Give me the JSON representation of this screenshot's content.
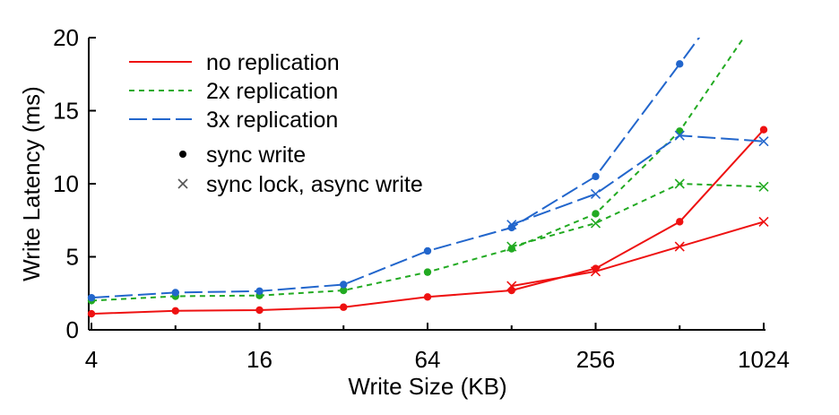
{
  "chart_data": {
    "type": "line",
    "title": "",
    "xlabel": "Write Size (KB)",
    "ylabel": "Write Latency (ms)",
    "x_scale": "log2",
    "x": [
      4,
      8,
      16,
      32,
      64,
      128,
      256,
      512,
      1024
    ],
    "xticks": [
      "4",
      "16",
      "64",
      "256",
      "1024"
    ],
    "xtick_values": [
      4,
      16,
      64,
      256,
      1024
    ],
    "ylim": [
      0,
      20
    ],
    "yticks": [
      0,
      5,
      10,
      15,
      20
    ],
    "grid": false,
    "legend_position": "top-left",
    "series": [
      {
        "name": "no replication",
        "mode": "sync write",
        "color": "#ee1111",
        "dash": "solid",
        "marker": "dot",
        "values": [
          1.1,
          1.3,
          1.35,
          1.55,
          2.25,
          2.7,
          4.2,
          7.4,
          13.7
        ]
      },
      {
        "name": "no replication",
        "mode": "sync lock, async write",
        "color": "#ee1111",
        "dash": "solid",
        "marker": "x",
        "values": [
          null,
          null,
          null,
          null,
          null,
          3.0,
          4.0,
          5.7,
          7.4
        ]
      },
      {
        "name": "2x replication",
        "mode": "sync write",
        "color": "#22aa22",
        "dash": "short",
        "marker": "dot",
        "values": [
          2.0,
          2.3,
          2.35,
          2.7,
          3.95,
          5.55,
          7.95,
          13.6,
          22.0
        ]
      },
      {
        "name": "2x replication",
        "mode": "sync lock, async write",
        "color": "#22aa22",
        "dash": "short",
        "marker": "x",
        "values": [
          null,
          null,
          null,
          null,
          null,
          5.7,
          7.3,
          10.0,
          9.8
        ]
      },
      {
        "name": "3x replication",
        "mode": "sync write",
        "color": "#2266cc",
        "dash": "long",
        "marker": "dot",
        "values": [
          2.2,
          2.55,
          2.65,
          3.1,
          5.4,
          7.0,
          10.5,
          18.2,
          26.0
        ]
      },
      {
        "name": "3x replication",
        "mode": "sync lock, async write",
        "color": "#2266cc",
        "dash": "long",
        "marker": "x",
        "values": [
          null,
          null,
          null,
          null,
          null,
          7.2,
          9.3,
          13.3,
          12.9
        ]
      }
    ],
    "legend": {
      "lines": [
        {
          "label": "no replication",
          "color": "#ee1111",
          "dash": "solid"
        },
        {
          "label": "2x replication",
          "color": "#22aa22",
          "dash": "short"
        },
        {
          "label": "3x replication",
          "color": "#2266cc",
          "dash": "long"
        }
      ],
      "markers": [
        {
          "label": "sync write",
          "marker": "dot",
          "color": "#000000"
        },
        {
          "label": "sync lock, async write",
          "marker": "x",
          "color": "#555555"
        }
      ]
    }
  }
}
